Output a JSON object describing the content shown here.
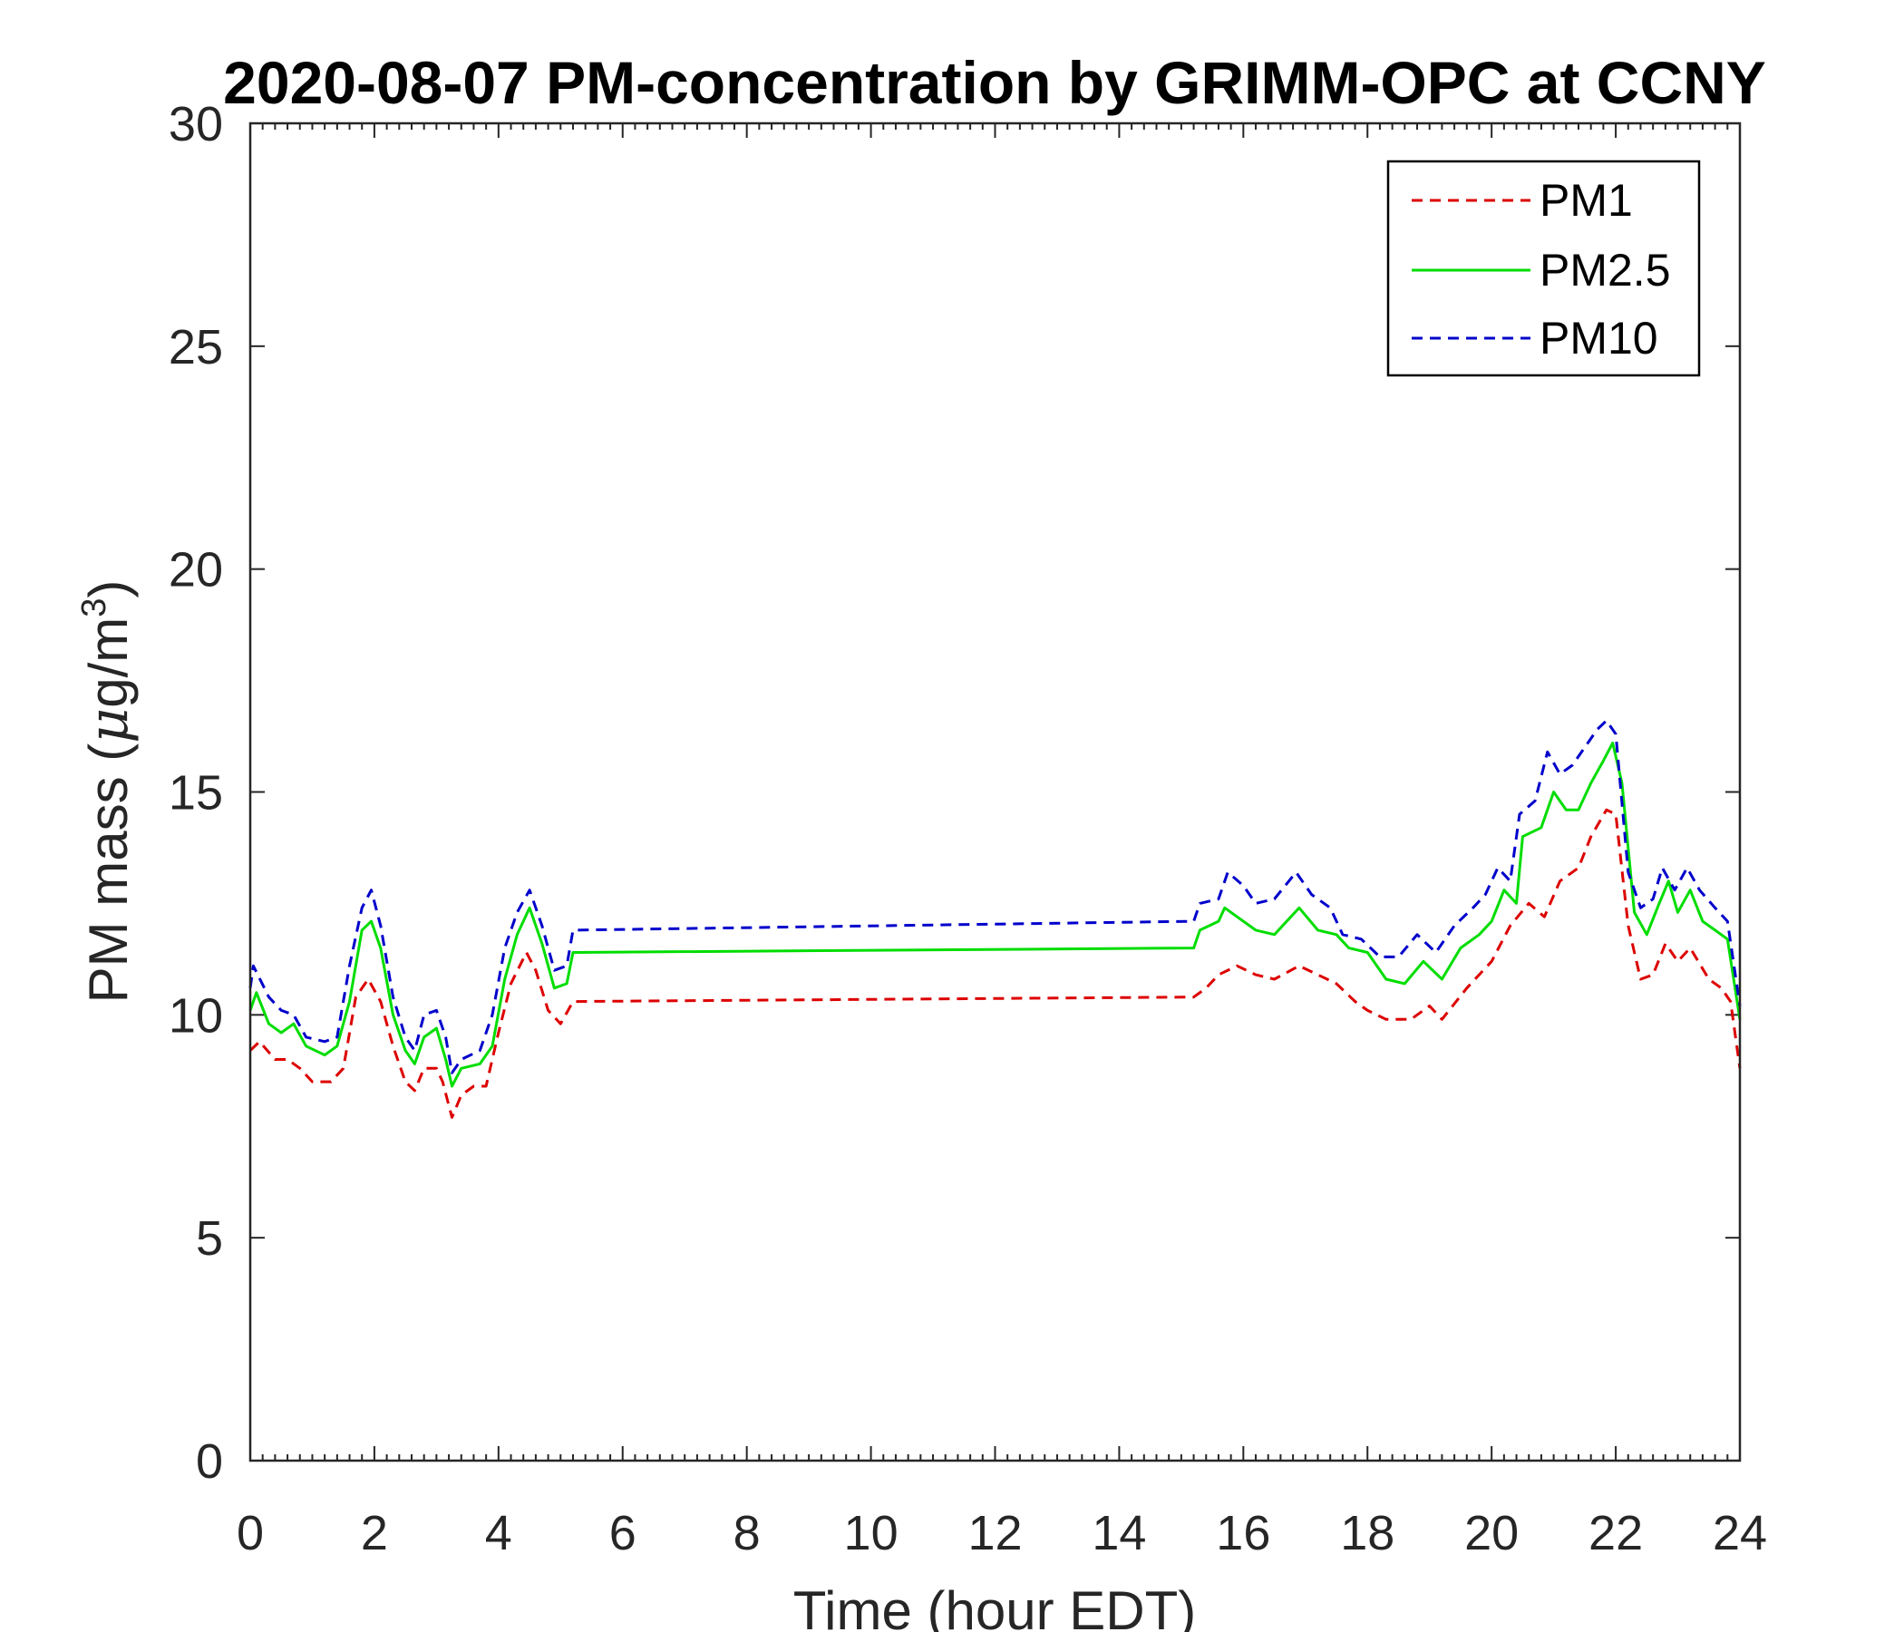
{
  "chart_data": {
    "type": "line",
    "title": "2020-08-07 PM-concentration by GRIMM-OPC at CCNY",
    "xlabel": "Time (hour EDT)",
    "ylabel_parts": {
      "main": "PM mass (",
      "mu": "μ",
      "unit": "g/m",
      "sup": "3",
      "close": ")"
    },
    "xlim": [
      0,
      24
    ],
    "ylim": [
      0,
      30
    ],
    "xticks": [
      0,
      2,
      4,
      6,
      8,
      10,
      12,
      14,
      16,
      18,
      20,
      22,
      24
    ],
    "yticks": [
      0,
      5,
      10,
      15,
      20,
      25,
      30
    ],
    "legend_position": "top-right",
    "grid": false,
    "series": [
      {
        "name": "PM1",
        "color": "#dd0000",
        "dash": "dashed",
        "points": [
          [
            0.0,
            9.2
          ],
          [
            0.15,
            9.4
          ],
          [
            0.4,
            9.0
          ],
          [
            0.6,
            9.0
          ],
          [
            0.8,
            8.8
          ],
          [
            1.0,
            8.5
          ],
          [
            1.3,
            8.5
          ],
          [
            1.5,
            8.8
          ],
          [
            1.7,
            10.4
          ],
          [
            1.9,
            10.8
          ],
          [
            2.1,
            10.3
          ],
          [
            2.3,
            9.3
          ],
          [
            2.5,
            8.5
          ],
          [
            2.65,
            8.3
          ],
          [
            2.8,
            8.8
          ],
          [
            3.0,
            8.8
          ],
          [
            3.1,
            8.5
          ],
          [
            3.25,
            7.7
          ],
          [
            3.4,
            8.2
          ],
          [
            3.6,
            8.4
          ],
          [
            3.8,
            8.4
          ],
          [
            4.0,
            9.6
          ],
          [
            4.2,
            10.7
          ],
          [
            4.45,
            11.4
          ],
          [
            4.6,
            11.0
          ],
          [
            4.8,
            10.1
          ],
          [
            5.0,
            9.8
          ],
          [
            5.2,
            10.3
          ],
          [
            15.2,
            10.4
          ],
          [
            15.4,
            10.6
          ],
          [
            15.6,
            10.9
          ],
          [
            15.9,
            11.1
          ],
          [
            16.2,
            10.9
          ],
          [
            16.5,
            10.8
          ],
          [
            16.9,
            11.1
          ],
          [
            17.2,
            10.9
          ],
          [
            17.5,
            10.7
          ],
          [
            17.8,
            10.3
          ],
          [
            18.0,
            10.1
          ],
          [
            18.3,
            9.9
          ],
          [
            18.7,
            9.9
          ],
          [
            19.0,
            10.2
          ],
          [
            19.2,
            9.9
          ],
          [
            19.6,
            10.6
          ],
          [
            20.0,
            11.2
          ],
          [
            20.3,
            12.0
          ],
          [
            20.6,
            12.5
          ],
          [
            20.85,
            12.2
          ],
          [
            21.1,
            13.0
          ],
          [
            21.4,
            13.3
          ],
          [
            21.6,
            14.0
          ],
          [
            21.85,
            14.6
          ],
          [
            22.0,
            14.5
          ],
          [
            22.2,
            12.0
          ],
          [
            22.4,
            10.8
          ],
          [
            22.6,
            10.9
          ],
          [
            22.8,
            11.6
          ],
          [
            23.0,
            11.2
          ],
          [
            23.2,
            11.5
          ],
          [
            23.5,
            10.8
          ],
          [
            23.7,
            10.6
          ],
          [
            23.85,
            10.3
          ],
          [
            24.0,
            8.8
          ]
        ]
      },
      {
        "name": "PM2.5",
        "color": "#00dd00",
        "dash": "solid",
        "points": [
          [
            0.0,
            10.1
          ],
          [
            0.1,
            10.5
          ],
          [
            0.3,
            9.8
          ],
          [
            0.5,
            9.6
          ],
          [
            0.7,
            9.8
          ],
          [
            0.9,
            9.3
          ],
          [
            1.2,
            9.1
          ],
          [
            1.4,
            9.3
          ],
          [
            1.6,
            10.3
          ],
          [
            1.8,
            11.9
          ],
          [
            1.95,
            12.1
          ],
          [
            2.1,
            11.5
          ],
          [
            2.3,
            10.0
          ],
          [
            2.5,
            9.2
          ],
          [
            2.65,
            8.9
          ],
          [
            2.8,
            9.5
          ],
          [
            3.0,
            9.7
          ],
          [
            3.15,
            9.0
          ],
          [
            3.25,
            8.4
          ],
          [
            3.4,
            8.8
          ],
          [
            3.7,
            8.9
          ],
          [
            3.9,
            9.3
          ],
          [
            4.1,
            10.8
          ],
          [
            4.3,
            11.8
          ],
          [
            4.5,
            12.4
          ],
          [
            4.7,
            11.6
          ],
          [
            4.9,
            10.6
          ],
          [
            5.1,
            10.7
          ],
          [
            5.2,
            11.4
          ],
          [
            15.2,
            11.5
          ],
          [
            15.3,
            11.9
          ],
          [
            15.6,
            12.1
          ],
          [
            15.7,
            12.4
          ],
          [
            15.9,
            12.2
          ],
          [
            16.2,
            11.9
          ],
          [
            16.5,
            11.8
          ],
          [
            16.9,
            12.4
          ],
          [
            17.2,
            11.9
          ],
          [
            17.5,
            11.8
          ],
          [
            17.7,
            11.5
          ],
          [
            18.0,
            11.4
          ],
          [
            18.3,
            10.8
          ],
          [
            18.6,
            10.7
          ],
          [
            18.9,
            11.2
          ],
          [
            19.2,
            10.8
          ],
          [
            19.5,
            11.5
          ],
          [
            19.8,
            11.8
          ],
          [
            20.0,
            12.1
          ],
          [
            20.2,
            12.8
          ],
          [
            20.4,
            12.5
          ],
          [
            20.5,
            14.0
          ],
          [
            20.8,
            14.2
          ],
          [
            21.0,
            15.0
          ],
          [
            21.2,
            14.6
          ],
          [
            21.4,
            14.6
          ],
          [
            21.6,
            15.2
          ],
          [
            21.8,
            15.7
          ],
          [
            21.95,
            16.1
          ],
          [
            22.1,
            15.2
          ],
          [
            22.3,
            12.3
          ],
          [
            22.5,
            11.8
          ],
          [
            22.7,
            12.5
          ],
          [
            22.85,
            13.0
          ],
          [
            23.0,
            12.3
          ],
          [
            23.2,
            12.8
          ],
          [
            23.4,
            12.1
          ],
          [
            23.6,
            11.9
          ],
          [
            23.8,
            11.7
          ],
          [
            24.0,
            9.9
          ]
        ]
      },
      {
        "name": "PM10",
        "color": "#0000cc",
        "dash": "dashed",
        "points": [
          [
            0.0,
            10.6
          ],
          [
            0.05,
            11.1
          ],
          [
            0.3,
            10.4
          ],
          [
            0.5,
            10.1
          ],
          [
            0.7,
            10.0
          ],
          [
            0.9,
            9.5
          ],
          [
            1.2,
            9.4
          ],
          [
            1.4,
            9.5
          ],
          [
            1.6,
            11.1
          ],
          [
            1.8,
            12.4
          ],
          [
            1.95,
            12.8
          ],
          [
            2.1,
            12.0
          ],
          [
            2.3,
            10.4
          ],
          [
            2.5,
            9.5
          ],
          [
            2.65,
            9.2
          ],
          [
            2.8,
            10.0
          ],
          [
            3.0,
            10.1
          ],
          [
            3.15,
            9.5
          ],
          [
            3.25,
            8.7
          ],
          [
            3.4,
            9.0
          ],
          [
            3.7,
            9.2
          ],
          [
            3.9,
            10.0
          ],
          [
            4.1,
            11.5
          ],
          [
            4.3,
            12.3
          ],
          [
            4.5,
            12.8
          ],
          [
            4.7,
            12.0
          ],
          [
            4.9,
            11.0
          ],
          [
            5.1,
            11.1
          ],
          [
            5.2,
            11.9
          ],
          [
            15.2,
            12.1
          ],
          [
            15.3,
            12.5
          ],
          [
            15.6,
            12.6
          ],
          [
            15.75,
            13.2
          ],
          [
            16.0,
            12.9
          ],
          [
            16.2,
            12.5
          ],
          [
            16.5,
            12.6
          ],
          [
            16.85,
            13.2
          ],
          [
            17.1,
            12.7
          ],
          [
            17.4,
            12.4
          ],
          [
            17.6,
            11.8
          ],
          [
            17.9,
            11.7
          ],
          [
            18.2,
            11.3
          ],
          [
            18.5,
            11.3
          ],
          [
            18.8,
            11.8
          ],
          [
            19.1,
            11.4
          ],
          [
            19.4,
            12.0
          ],
          [
            19.7,
            12.4
          ],
          [
            19.9,
            12.7
          ],
          [
            20.1,
            13.3
          ],
          [
            20.3,
            13.0
          ],
          [
            20.45,
            14.5
          ],
          [
            20.7,
            14.8
          ],
          [
            20.9,
            15.9
          ],
          [
            21.1,
            15.4
          ],
          [
            21.3,
            15.6
          ],
          [
            21.5,
            16.0
          ],
          [
            21.7,
            16.4
          ],
          [
            21.85,
            16.6
          ],
          [
            22.0,
            16.3
          ],
          [
            22.2,
            13.2
          ],
          [
            22.4,
            12.4
          ],
          [
            22.6,
            12.6
          ],
          [
            22.75,
            13.3
          ],
          [
            22.95,
            12.8
          ],
          [
            23.15,
            13.3
          ],
          [
            23.35,
            12.8
          ],
          [
            23.6,
            12.4
          ],
          [
            23.8,
            12.1
          ],
          [
            24.0,
            10.2
          ]
        ]
      }
    ]
  }
}
